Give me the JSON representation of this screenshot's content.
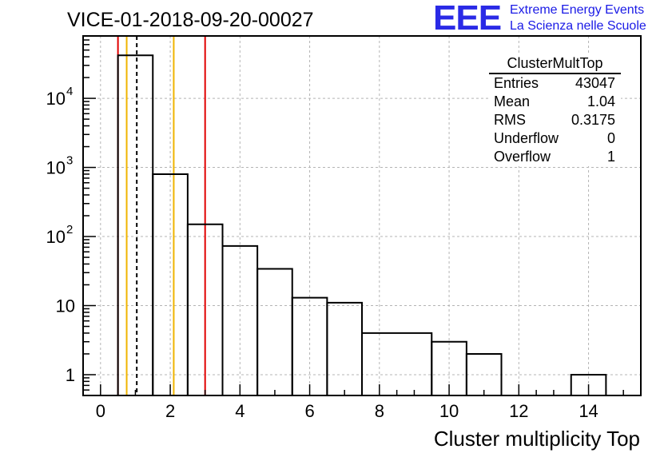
{
  "header": {
    "run_title": "VICE-01-2018-09-20-00027",
    "logo_text": "EEE",
    "logo_line1": "Extreme Energy Events",
    "logo_line2": "La Scienza nelle Scuole"
  },
  "stats": {
    "title": "ClusterMultTop",
    "rows": [
      {
        "key": "Entries",
        "value": "43047"
      },
      {
        "key": "Mean",
        "value": "1.04"
      },
      {
        "key": "RMS",
        "value": "0.3175"
      },
      {
        "key": "Underflow",
        "value": "0"
      },
      {
        "key": "Overflow",
        "value": "1"
      }
    ]
  },
  "colors": {
    "histogram": "#000000",
    "red_line": "#e00000",
    "orange_line": "#f0b400",
    "grid": "#b4b4b4",
    "logo": "#2a2ae6"
  },
  "chart_data": {
    "type": "histogram",
    "title": "VICE-01-2018-09-20-00027",
    "xlabel": "Cluster multiplicity Top",
    "ylabel": "",
    "yscale": "log",
    "xlim": [
      -0.5,
      15.5
    ],
    "ylim": [
      0.5,
      80000
    ],
    "grid": true,
    "bins": [
      {
        "x0": 0.5,
        "x1": 1.5,
        "value": 42000
      },
      {
        "x0": 1.5,
        "x1": 2.5,
        "value": 800
      },
      {
        "x0": 2.5,
        "x1": 3.5,
        "value": 150
      },
      {
        "x0": 3.5,
        "x1": 4.5,
        "value": 73
      },
      {
        "x0": 4.5,
        "x1": 5.5,
        "value": 34
      },
      {
        "x0": 5.5,
        "x1": 6.5,
        "value": 13
      },
      {
        "x0": 6.5,
        "x1": 7.5,
        "value": 11
      },
      {
        "x0": 7.5,
        "x1": 9.5,
        "value": 4
      },
      {
        "x0": 9.5,
        "x1": 10.5,
        "value": 3
      },
      {
        "x0": 10.5,
        "x1": 11.5,
        "value": 2
      },
      {
        "x0": 13.5,
        "x1": 14.5,
        "value": 1
      }
    ],
    "x_ticks": [
      0,
      2,
      4,
      6,
      8,
      10,
      12,
      14
    ],
    "x_tick_labels": [
      "0",
      "2",
      "4",
      "6",
      "8",
      "10",
      "12",
      "14"
    ],
    "y_ticks": [
      1,
      10,
      100,
      1000,
      10000
    ],
    "y_tick_labels": [
      {
        "base": "1",
        "exp": ""
      },
      {
        "base": "10",
        "exp": ""
      },
      {
        "base": "10",
        "exp": "2"
      },
      {
        "base": "10",
        "exp": "3"
      },
      {
        "base": "10",
        "exp": "4"
      }
    ],
    "vertical_lines": [
      {
        "x": 0.5,
        "color": "red",
        "style": "solid"
      },
      {
        "x": 0.75,
        "color": "orange",
        "style": "solid"
      },
      {
        "x": 1.04,
        "color": "black",
        "style": "dashed"
      },
      {
        "x": 2.1,
        "color": "orange",
        "style": "solid"
      },
      {
        "x": 3.0,
        "color": "red",
        "style": "solid"
      }
    ]
  }
}
